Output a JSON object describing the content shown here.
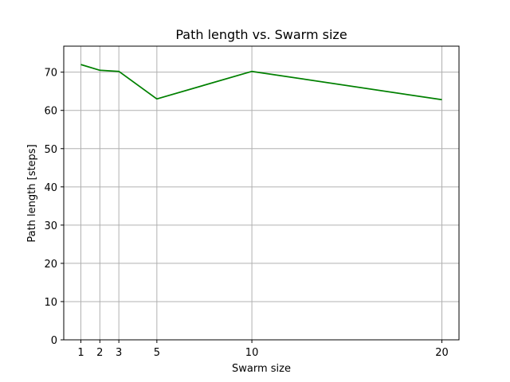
{
  "chart_data": {
    "type": "line",
    "title": "Path length vs. Swarm size",
    "xlabel": "Swarm size",
    "ylabel": "Path length [steps]",
    "x": [
      1,
      2,
      3,
      5,
      10,
      20
    ],
    "xticks": [
      1,
      2,
      3,
      5,
      10,
      20
    ],
    "yticks": [
      0,
      10,
      20,
      30,
      40,
      50,
      60,
      70
    ],
    "xlim": [
      0.1,
      20.9
    ],
    "ylim": [
      0,
      76.8
    ],
    "grid": true,
    "series": [
      {
        "values": [
          72.0,
          70.5,
          70.2,
          63.0,
          70.2,
          62.8
        ],
        "color": "#008000"
      }
    ]
  }
}
